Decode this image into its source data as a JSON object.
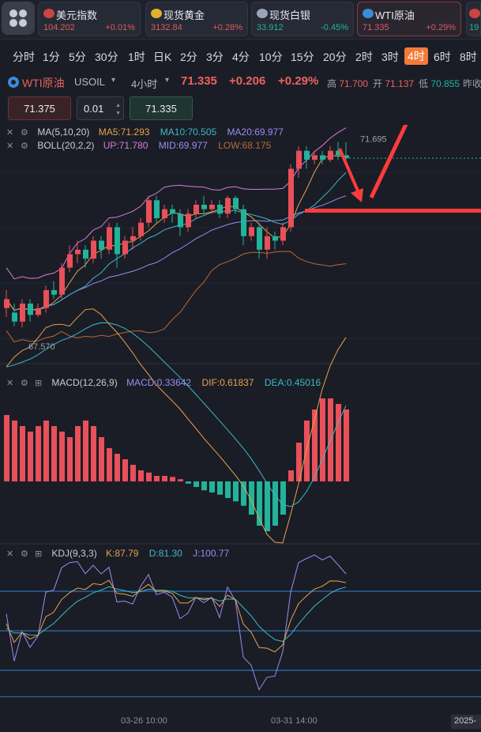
{
  "quotes": [
    {
      "name": "美元指数",
      "price": "104.202",
      "change": "+0.01%",
      "color": "#e05a5a"
    },
    {
      "name": "现货黄金",
      "price": "3132.84",
      "change": "+0.28%",
      "color": "#e05a5a"
    },
    {
      "name": "现货白银",
      "price": "33.912",
      "change": "-0.45%",
      "color": "#22b39a"
    },
    {
      "name": "WTI原油",
      "price": "71.335",
      "change": "+0.29%",
      "color": "#e05a5a",
      "active": true
    },
    {
      "name": "",
      "price": "19",
      "change": "",
      "color": "#22b39a"
    }
  ],
  "timeframes": [
    "分时",
    "1分",
    "5分",
    "30分",
    "1时",
    "日K",
    "2分",
    "3分",
    "4分",
    "10分",
    "15分",
    "20分",
    "2时",
    "3时",
    "4时",
    "6时",
    "8时"
  ],
  "active_timeframe": "4时",
  "symbol": {
    "name": "WTI原油",
    "code": "USOIL",
    "interval": "4小时",
    "last": "71.335",
    "change": "+0.206",
    "change_pct": "+0.29%",
    "high_label": "高",
    "high": "71.700",
    "open_label": "开",
    "open": "71.137",
    "low_label": "低",
    "low": "70.855",
    "prev_label": "昨收"
  },
  "order": {
    "sell_price": "71.375",
    "qty": "0.01",
    "buy_price": "71.335"
  },
  "indicators": {
    "ma": {
      "name": "MA(5,10,20)",
      "ma5": "MA5:71.293",
      "ma10": "MA10:70.505",
      "ma20": "MA20:69.977"
    },
    "boll": {
      "name": "BOLL(20,2,2)",
      "up": "UP:71.780",
      "mid": "MID:69.977",
      "low": "LOW:68.175"
    },
    "macd": {
      "name": "MACD(12,26,9)",
      "macd": "MACD:0.33642",
      "dif": "DIF:0.61837",
      "dea": "DEA:0.45016"
    },
    "kdj": {
      "name": "KDJ(9,3,3)",
      "k": "K:87.79",
      "d": "D:81.30",
      "j": "J:100.77"
    }
  },
  "chart_labels": {
    "max_label": "71.695",
    "min_label": "67.570"
  },
  "time_axis": [
    "03-26 10:00",
    "03-31 14:00",
    "2025-"
  ],
  "colors": {
    "up": "#e8505a",
    "down": "#22b39a",
    "ma5": "#e8a24a",
    "ma10": "#3fb8c8",
    "ma20": "#9a8cf0",
    "boll_up": "#d67cd8",
    "boll_low": "#b8683a",
    "annotation": "#ff3b3b"
  },
  "chart_data": {
    "type": "candlestick",
    "candles": [
      {
        "o": 68.0,
        "c": 68.2,
        "h": 68.4,
        "l": 67.8
      },
      {
        "o": 67.9,
        "c": 67.7,
        "h": 68.1,
        "l": 67.6
      },
      {
        "o": 67.7,
        "c": 68.1,
        "h": 68.2,
        "l": 67.57
      },
      {
        "o": 68.1,
        "c": 67.85,
        "h": 68.2,
        "l": 67.7
      },
      {
        "o": 67.85,
        "c": 68.0,
        "h": 68.1,
        "l": 67.8
      },
      {
        "o": 68.0,
        "c": 68.4,
        "h": 68.5,
        "l": 67.9
      },
      {
        "o": 68.4,
        "c": 68.3,
        "h": 68.6,
        "l": 68.2
      },
      {
        "o": 68.3,
        "c": 68.9,
        "h": 69.0,
        "l": 68.2
      },
      {
        "o": 68.9,
        "c": 69.2,
        "h": 69.4,
        "l": 68.8
      },
      {
        "o": 69.2,
        "c": 69.3,
        "h": 69.5,
        "l": 69.0
      },
      {
        "o": 69.3,
        "c": 69.1,
        "h": 69.4,
        "l": 68.9
      },
      {
        "o": 69.1,
        "c": 69.5,
        "h": 69.6,
        "l": 69.0
      },
      {
        "o": 69.5,
        "c": 69.3,
        "h": 69.6,
        "l": 69.1
      },
      {
        "o": 69.3,
        "c": 69.8,
        "h": 69.9,
        "l": 69.2
      },
      {
        "o": 69.8,
        "c": 69.2,
        "h": 69.9,
        "l": 68.9
      },
      {
        "o": 69.2,
        "c": 69.5,
        "h": 69.6,
        "l": 69.1
      },
      {
        "o": 69.5,
        "c": 69.6,
        "h": 69.8,
        "l": 69.3
      },
      {
        "o": 69.6,
        "c": 69.9,
        "h": 70.0,
        "l": 69.5
      },
      {
        "o": 69.9,
        "c": 70.4,
        "h": 70.5,
        "l": 69.8
      },
      {
        "o": 70.4,
        "c": 70.0,
        "h": 70.5,
        "l": 69.9
      },
      {
        "o": 70.0,
        "c": 70.2,
        "h": 70.3,
        "l": 69.9
      },
      {
        "o": 70.2,
        "c": 70.1,
        "h": 70.3,
        "l": 69.9
      },
      {
        "o": 70.1,
        "c": 69.8,
        "h": 70.2,
        "l": 69.6
      },
      {
        "o": 69.8,
        "c": 70.1,
        "h": 70.2,
        "l": 69.7
      },
      {
        "o": 70.1,
        "c": 70.3,
        "h": 70.4,
        "l": 70.0
      },
      {
        "o": 70.3,
        "c": 70.2,
        "h": 70.5,
        "l": 70.1
      },
      {
        "o": 70.2,
        "c": 70.3,
        "h": 70.4,
        "l": 70.1
      },
      {
        "o": 70.3,
        "c": 70.1,
        "h": 70.4,
        "l": 70.0
      },
      {
        "o": 70.1,
        "c": 70.45,
        "h": 70.5,
        "l": 70.0
      },
      {
        "o": 70.45,
        "c": 70.2,
        "h": 70.5,
        "l": 70.1
      },
      {
        "o": 70.2,
        "c": 69.6,
        "h": 70.3,
        "l": 69.4
      },
      {
        "o": 69.6,
        "c": 69.8,
        "h": 69.9,
        "l": 69.5
      },
      {
        "o": 69.8,
        "c": 69.3,
        "h": 69.9,
        "l": 69.1
      },
      {
        "o": 69.3,
        "c": 69.6,
        "h": 69.8,
        "l": 69.1
      },
      {
        "o": 69.6,
        "c": 69.5,
        "h": 69.7,
        "l": 69.3
      },
      {
        "o": 69.5,
        "c": 69.8,
        "h": 69.9,
        "l": 69.4
      },
      {
        "o": 69.8,
        "c": 71.1,
        "h": 71.2,
        "l": 69.7
      },
      {
        "o": 71.1,
        "c": 71.5,
        "h": 71.6,
        "l": 70.9
      },
      {
        "o": 71.5,
        "c": 71.3,
        "h": 71.6,
        "l": 71.1
      },
      {
        "o": 71.3,
        "c": 71.4,
        "h": 71.5,
        "l": 71.2
      },
      {
        "o": 71.4,
        "c": 71.3,
        "h": 71.5,
        "l": 71.2
      },
      {
        "o": 71.3,
        "c": 71.5,
        "h": 71.6,
        "l": 71.25
      },
      {
        "o": 71.5,
        "c": 71.4,
        "h": 71.7,
        "l": 71.3
      },
      {
        "o": 71.4,
        "c": 71.335,
        "h": 71.695,
        "l": 71.3
      }
    ],
    "ylim": [
      66.8,
      71.9
    ],
    "macd_hist": [
      0.6,
      0.55,
      0.5,
      0.45,
      0.5,
      0.55,
      0.5,
      0.45,
      0.4,
      0.5,
      0.55,
      0.5,
      0.4,
      0.3,
      0.25,
      0.2,
      0.15,
      0.1,
      0.08,
      0.05,
      0.05,
      0.04,
      0.02,
      -0.02,
      -0.05,
      -0.08,
      -0.1,
      -0.12,
      -0.15,
      -0.18,
      -0.22,
      -0.3,
      -0.4,
      -0.45,
      -0.4,
      -0.3,
      0.1,
      0.35,
      0.55,
      0.65,
      0.75,
      0.75,
      0.7,
      0.65
    ],
    "macd_ylim": [
      -0.55,
      0.95
    ],
    "kdj_ylim": [
      -10,
      110
    ]
  }
}
